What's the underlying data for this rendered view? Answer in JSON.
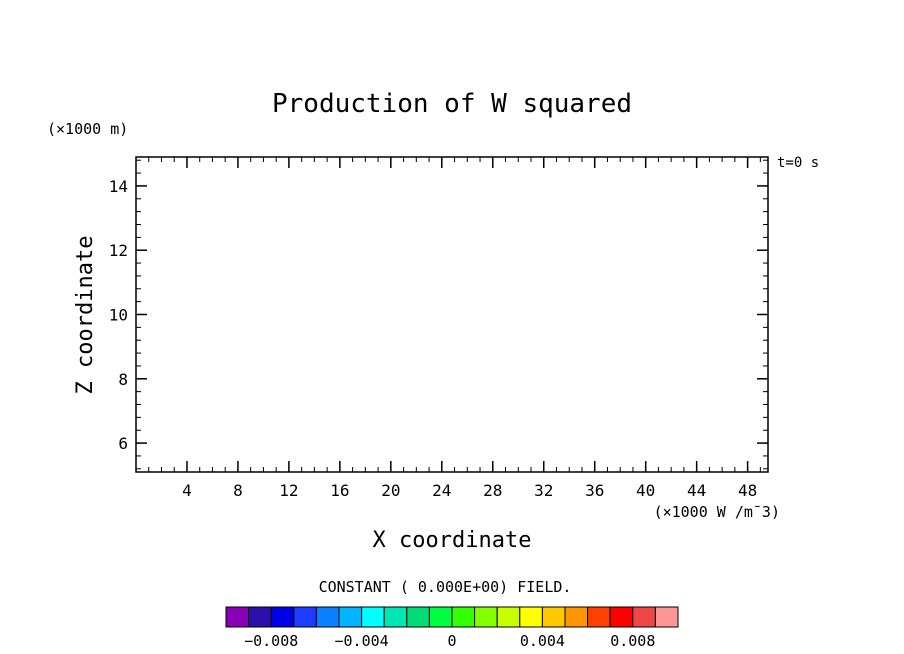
{
  "chart_data": {
    "type": "heatmap",
    "title": "Production of W squared",
    "xlabel": "X coordinate",
    "ylabel": "Z coordinate",
    "x_unit": "(×1000 W /m¯3)",
    "y_unit": "(×1000 m)",
    "time_label": "t=0 s",
    "xlim": [
      0,
      49.6
    ],
    "ylim": [
      5.1,
      14.9
    ],
    "x_ticks": [
      4,
      8,
      12,
      16,
      20,
      24,
      28,
      32,
      36,
      40,
      44,
      48
    ],
    "x_minor_step": 1,
    "y_ticks": [
      6,
      8,
      10,
      12,
      14
    ],
    "y_minor_step": 0.4,
    "field_note": "CONSTANT ( 0.000E+00) FIELD.",
    "field_value": 0.0,
    "colorbar": {
      "colors": [
        "#8a00b4",
        "#2b0fa8",
        "#0000e6",
        "#1e3cff",
        "#0a82ff",
        "#00b4ff",
        "#00ffff",
        "#00e6b4",
        "#00dc78",
        "#00ff40",
        "#32ff00",
        "#82ff00",
        "#c8ff00",
        "#ffff00",
        "#ffc800",
        "#ff9600",
        "#ff4000",
        "#ff0000",
        "#f04646",
        "#ff9696"
      ],
      "tick_labels": [
        "−0.008",
        "−0.004",
        "0",
        "0.004",
        "0.008"
      ],
      "tick_values": [
        -0.008,
        -0.004,
        0,
        0.004,
        0.008
      ],
      "range": [
        -0.01,
        0.01
      ]
    }
  }
}
